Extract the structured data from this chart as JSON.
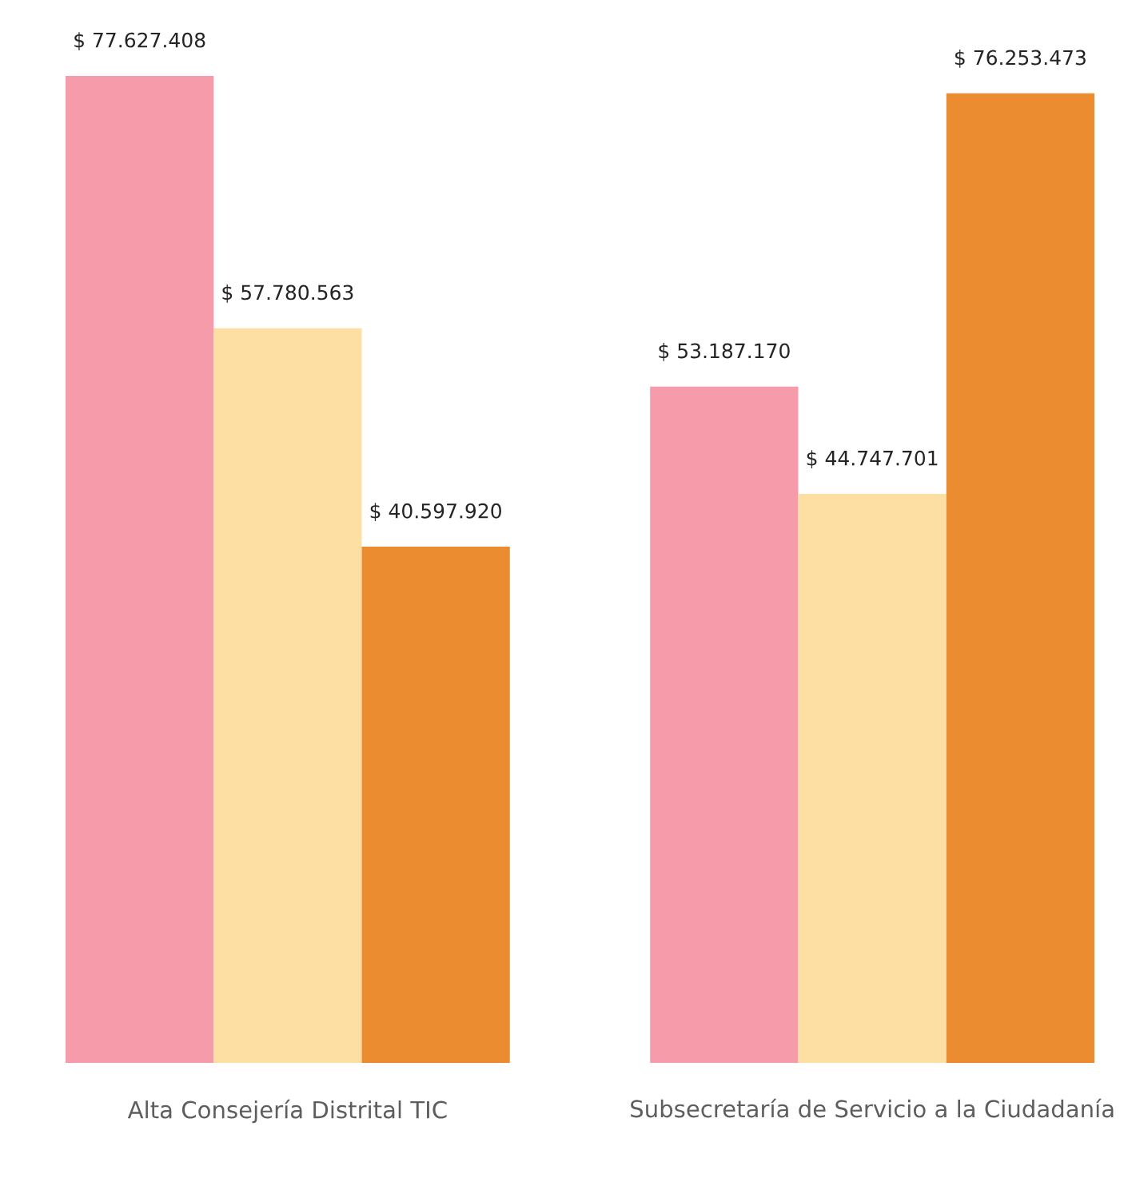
{
  "chart_data": {
    "type": "bar",
    "categories": [
      "Alta Consejería Distrital TIC",
      "Subsecretaría de Servicio a la Ciudadanía"
    ],
    "series": [
      {
        "color": "#f59ba9",
        "values": [
          77627408,
          53187170
        ],
        "value_labels": [
          "$ 77.627.408",
          "$ 53.187.170"
        ]
      },
      {
        "color": "#fddfa3",
        "values": [
          57780563,
          44747701
        ],
        "value_labels": [
          "$ 57.780.563",
          "$ 44.747.701"
        ]
      },
      {
        "color": "#eb8c31",
        "values": [
          40597920,
          76253473
        ],
        "value_labels": [
          "$ 40.597.920",
          "$ 76.253.473"
        ]
      }
    ]
  }
}
